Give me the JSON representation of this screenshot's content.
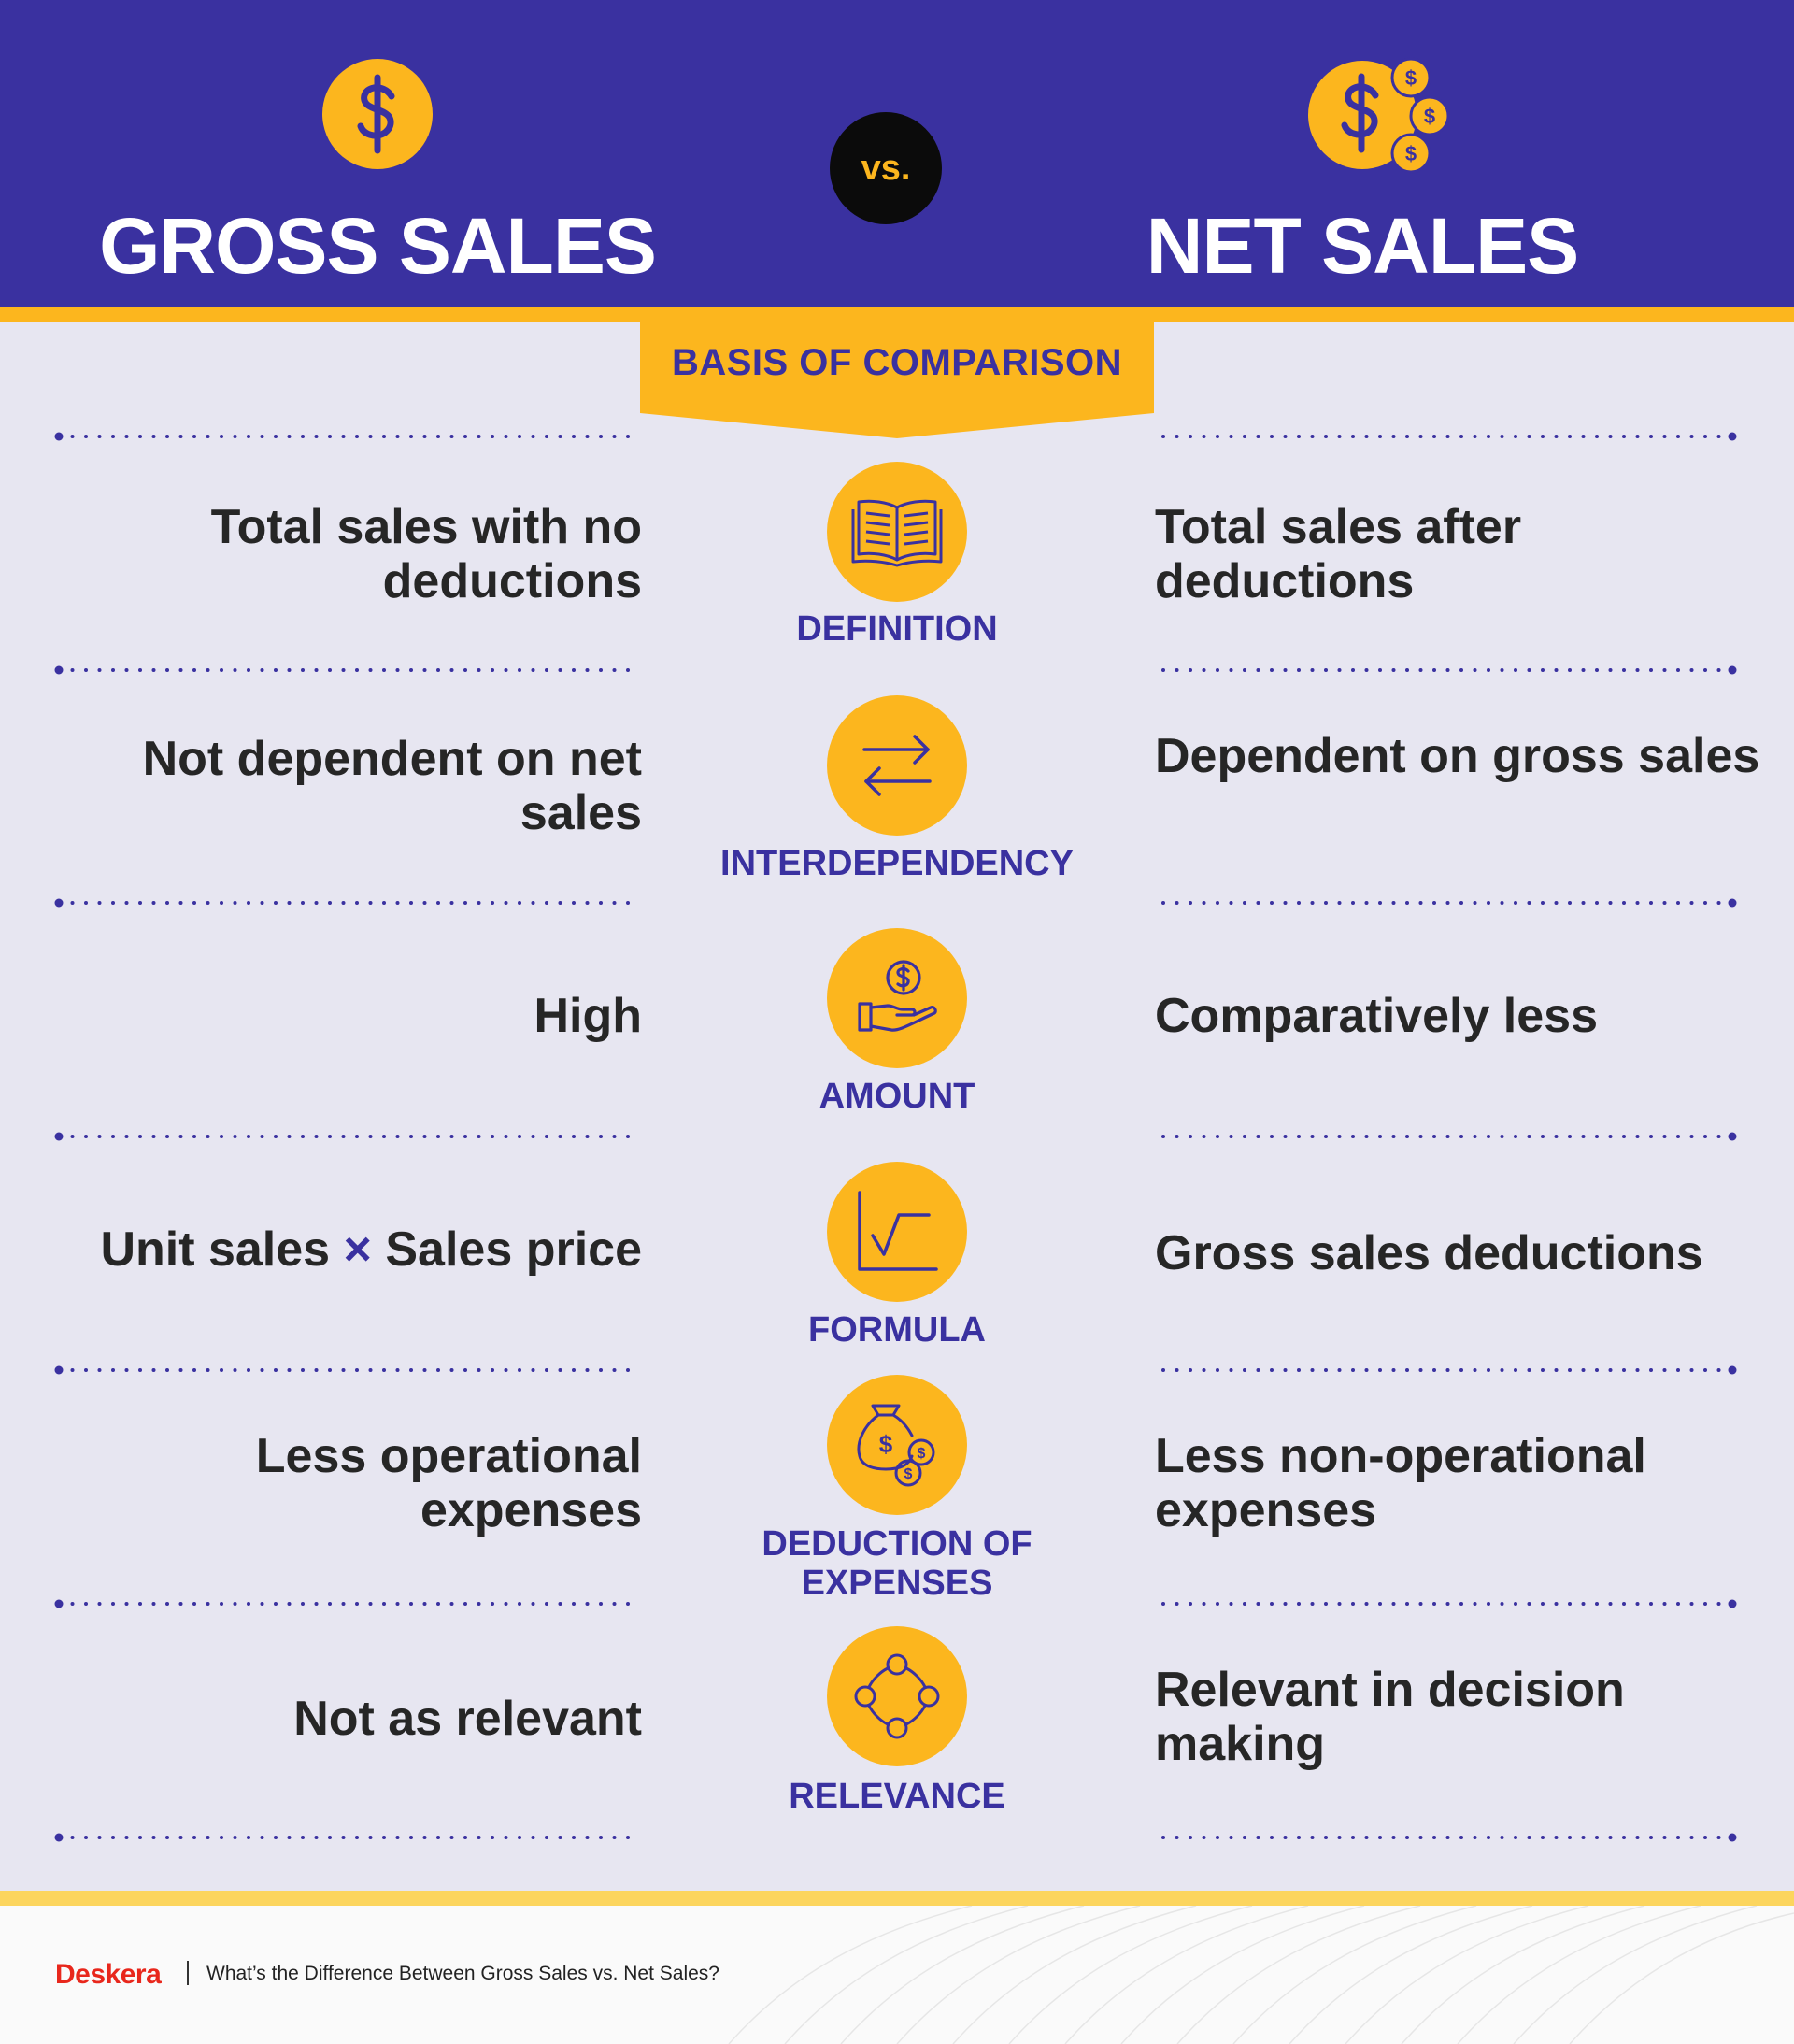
{
  "header": {
    "left_title": "GROSS SALES",
    "right_title": "NET SALES",
    "vs_label": "vs.",
    "left_icon": "dollar-coin-icon",
    "right_icon": "dollar-coins-stack-icon"
  },
  "basis_label": "BASIS OF COMPARISON",
  "rows": [
    {
      "category": "DEFINITION",
      "icon": "open-book-icon",
      "gross": "Total sales with no deductions",
      "net": "Total sales after deductions"
    },
    {
      "category": "INTERDEPENDENCY",
      "icon": "swap-arrows-icon",
      "gross": "Not dependent on net sales",
      "net": "Dependent on gross sales"
    },
    {
      "category": "AMOUNT",
      "icon": "hand-coin-icon",
      "gross": "High",
      "net": "Comparatively less"
    },
    {
      "category": "FORMULA",
      "icon": "square-root-chart-icon",
      "gross_part1": "Unit sales ",
      "gross_times": "×",
      "gross_part2": " Sales price",
      "net": "Gross sales deductions"
    },
    {
      "category_line1": "DEDUCTION OF",
      "category_line2": "EXPENSES",
      "icon": "money-bag-icon",
      "gross": "Less operational expenses",
      "net": "Less non-operational expenses"
    },
    {
      "category": "RELEVANCE",
      "icon": "circular-nodes-icon",
      "gross": "Not as relevant",
      "net": "Relevant in decision making"
    }
  ],
  "footer": {
    "brand": "Deskera",
    "caption": "What’s the Difference Between Gross Sales vs. Net Sales?"
  },
  "colors": {
    "primary_purple": "#3a31a0",
    "accent_yellow": "#fcb61e",
    "background": "#e7e6f1",
    "text_dark": "#262626",
    "brand_red": "#e8271c"
  }
}
